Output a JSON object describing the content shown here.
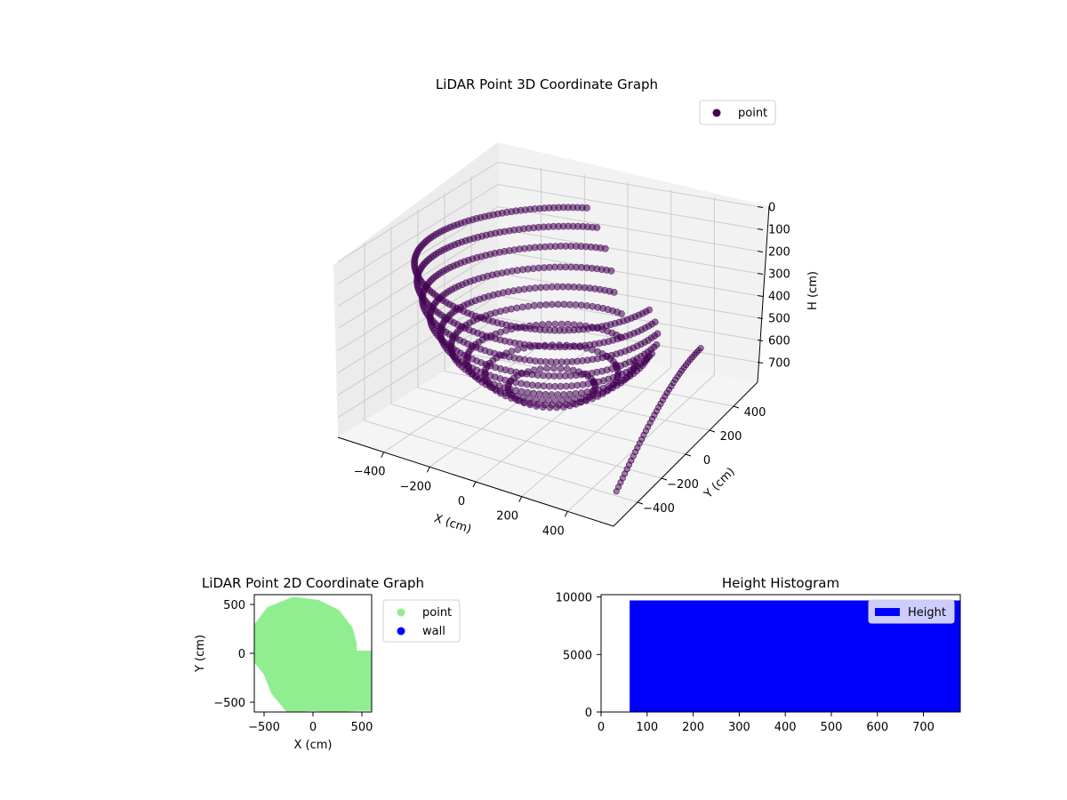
{
  "colors": {
    "point_3d": "#440154",
    "point_2d": "#90ee90",
    "wall": "#0000ff",
    "histogram_bar": "#0000ff",
    "axis": "#000000",
    "grid": "#cccccc",
    "pane_left": "#ececec",
    "pane_right": "#f2f2f2",
    "pane_floor": "#f5f5f5"
  },
  "chart_data": [
    {
      "type": "scatter",
      "title": "LiDAR Point 3D Coordinate Graph",
      "xlabel": "X (cm)",
      "ylabel": "Y (cm)",
      "zlabel": "H (cm)",
      "xlim": [
        -600,
        600
      ],
      "ylim": [
        -600,
        600
      ],
      "zlim": [
        790,
        -10
      ],
      "x_ticks": [
        "−400",
        "−200",
        "0",
        "200",
        "400"
      ],
      "y_ticks": [
        "−400",
        "−200",
        "0",
        "200",
        "400"
      ],
      "z_ticks": [
        "0",
        "100",
        "200",
        "300",
        "400",
        "500",
        "600",
        "700"
      ],
      "legend": {
        "position": "top-right",
        "entries": [
          "point"
        ]
      },
      "series": [
        {
          "name": "point",
          "shape": "hemispherical scan rings",
          "rings": [
            {
              "h": 640,
              "r": 170,
              "start_deg": 0,
              "end_deg": 360
            },
            {
              "h": 580,
              "r": 260,
              "start_deg": 0,
              "end_deg": 360
            },
            {
              "h": 520,
              "r": 330,
              "start_deg": 20,
              "end_deg": 340
            },
            {
              "h": 460,
              "r": 390,
              "start_deg": 30,
              "end_deg": 330
            },
            {
              "h": 400,
              "r": 430,
              "start_deg": 40,
              "end_deg": 320
            },
            {
              "h": 330,
              "r": 470,
              "start_deg": 45,
              "end_deg": 315
            },
            {
              "h": 250,
              "r": 500,
              "start_deg": 50,
              "end_deg": 310
            },
            {
              "h": 170,
              "r": 520,
              "start_deg": 55,
              "end_deg": 305
            },
            {
              "h": 90,
              "r": 530,
              "start_deg": 60,
              "end_deg": 300
            }
          ],
          "wall_arc": {
            "x": 560,
            "y_from": -500,
            "y_to": 200,
            "h_from": 430,
            "h_to": 700
          }
        }
      ],
      "grid": true
    },
    {
      "type": "scatter",
      "title": "LiDAR Point 2D Coordinate Graph",
      "xlabel": "X (cm)",
      "ylabel": "Y (cm)",
      "xlim": [
        -600,
        600
      ],
      "ylim": [
        -600,
        600
      ],
      "x_ticks": [
        "−500",
        "0",
        "500"
      ],
      "y_ticks": [
        "500",
        "0",
        "−500"
      ],
      "legend": {
        "position": "outside right",
        "entries": [
          "point",
          "wall"
        ]
      },
      "series": [
        {
          "name": "point",
          "outline": [
            [
              -600,
              250
            ],
            [
              -450,
              450
            ],
            [
              -200,
              550
            ],
            [
              50,
              520
            ],
            [
              250,
              420
            ],
            [
              380,
              250
            ],
            [
              420,
              100
            ],
            [
              420,
              0
            ],
            [
              600,
              0
            ],
            [
              600,
              -560
            ],
            [
              450,
              -560
            ],
            [
              200,
              -580
            ],
            [
              0,
              -560
            ],
            [
              -250,
              -580
            ],
            [
              -400,
              -400
            ],
            [
              -480,
              -200
            ],
            [
              -600,
              -50
            ]
          ]
        },
        {
          "name": "wall",
          "points": []
        }
      ],
      "grid": false
    },
    {
      "type": "bar",
      "title": "Height Histogram",
      "xlabel": "",
      "ylabel": "",
      "xlim": [
        0,
        780
      ],
      "ylim": [
        0,
        10200
      ],
      "x_ticks": [
        "0",
        "100",
        "200",
        "300",
        "400",
        "500",
        "600",
        "700"
      ],
      "y_ticks": [
        "0",
        "5000",
        "10000"
      ],
      "legend": {
        "position": "top-right",
        "entries": [
          "Height"
        ]
      },
      "series": [
        {
          "name": "Height",
          "bins": [
            {
              "from": 62,
              "to": 780,
              "count": 9700
            }
          ]
        }
      ],
      "grid": false
    }
  ]
}
